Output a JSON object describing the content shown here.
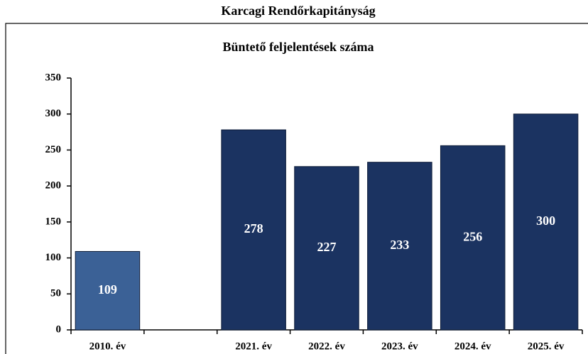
{
  "chart_data": {
    "type": "bar",
    "title": "Karcagi Rendőrkapitányság",
    "subtitle": "Büntető feljelentések száma",
    "categories": [
      "2010. év",
      null,
      "2021. év",
      "2022. év",
      "2023. év",
      "2024. év",
      "2025. év"
    ],
    "values": [
      109,
      null,
      278,
      227,
      233,
      256,
      300
    ],
    "colors": [
      "#3b6196",
      null,
      "#1b3361",
      "#1b3361",
      "#1b3361",
      "#1b3361",
      "#1b3361"
    ],
    "ylim": [
      0,
      350
    ],
    "yticks": [
      0,
      50,
      100,
      150,
      200,
      250,
      300,
      350
    ]
  }
}
